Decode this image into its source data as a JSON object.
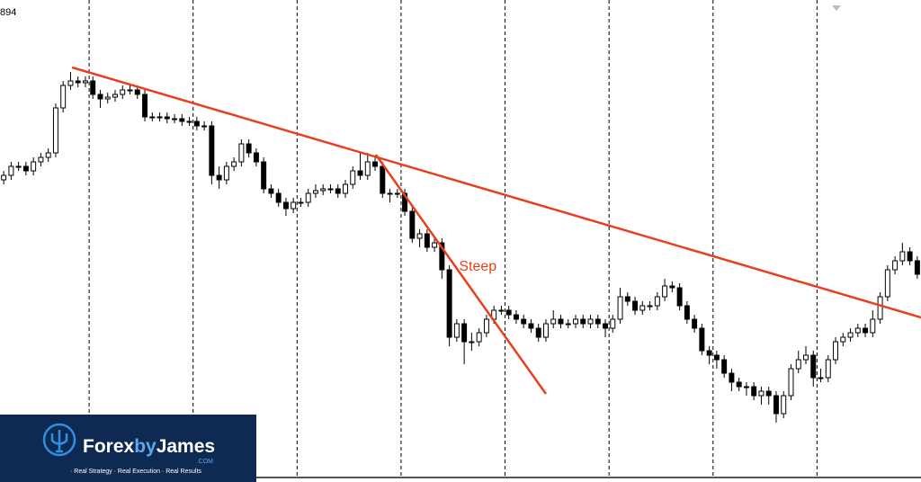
{
  "chart_data": {
    "type": "candlestick",
    "top_label": "894",
    "xlim": [
      0,
      124
    ],
    "ylim": [
      0,
      536
    ],
    "xticks": [
      12,
      26,
      40,
      54,
      68,
      82,
      96,
      110
    ],
    "grid": true,
    "up_color": "#ffffff",
    "down_color": "#000000",
    "edge_color": "#000000",
    "open": [
      336,
      341,
      351,
      351,
      346,
      356,
      361,
      366,
      416,
      441,
      446,
      444,
      446,
      431,
      426,
      428,
      431,
      436,
      436,
      431,
      406,
      406,
      406,
      404,
      404,
      401,
      401,
      396,
      396,
      341,
      336,
      351,
      356,
      376,
      366,
      356,
      326,
      321,
      311,
      304,
      311,
      311,
      321,
      324,
      326,
      326,
      321,
      331,
      346,
      341,
      356,
      351,
      321,
      321,
      321,
      301,
      271,
      276,
      261,
      266,
      236,
      161,
      176,
      156,
      156,
      166,
      181,
      191,
      191,
      186,
      181,
      176,
      171,
      161,
      176,
      181,
      176,
      176,
      181,
      176,
      181,
      176,
      171,
      181,
      206,
      201,
      191,
      196,
      196,
      206,
      218,
      216,
      196,
      181,
      171,
      146,
      141,
      136,
      121,
      111,
      106,
      106,
      96,
      101,
      96,
      76,
      96,
      126,
      136,
      141,
      116,
      116,
      136,
      156,
      161,
      166,
      171,
      166,
      181,
      206,
      236,
      246,
      256,
      246
    ],
    "high": [
      346,
      356,
      356,
      356,
      361,
      366,
      371,
      421,
      446,
      456,
      451,
      451,
      451,
      436,
      433,
      436,
      441,
      441,
      441,
      436,
      411,
      411,
      411,
      409,
      409,
      406,
      406,
      401,
      401,
      351,
      356,
      361,
      381,
      381,
      371,
      361,
      331,
      326,
      316,
      316,
      316,
      326,
      331,
      331,
      331,
      331,
      336,
      351,
      366,
      366,
      361,
      356,
      326,
      326,
      326,
      306,
      281,
      281,
      271,
      271,
      241,
      181,
      181,
      166,
      171,
      186,
      196,
      196,
      196,
      191,
      186,
      181,
      176,
      181,
      191,
      186,
      181,
      186,
      186,
      186,
      186,
      181,
      186,
      216,
      211,
      206,
      201,
      201,
      211,
      226,
      223,
      221,
      201,
      186,
      176,
      151,
      146,
      141,
      126,
      116,
      111,
      111,
      106,
      106,
      101,
      101,
      131,
      146,
      151,
      146,
      126,
      141,
      161,
      166,
      171,
      176,
      176,
      191,
      211,
      241,
      251,
      266,
      261,
      251
    ],
    "low": [
      331,
      336,
      346,
      341,
      341,
      351,
      356,
      361,
      411,
      436,
      439,
      439,
      426,
      416,
      421,
      423,
      426,
      431,
      426,
      401,
      401,
      401,
      399,
      399,
      396,
      396,
      391,
      391,
      331,
      326,
      331,
      346,
      351,
      361,
      351,
      321,
      316,
      306,
      296,
      299,
      306,
      306,
      316,
      319,
      321,
      316,
      316,
      326,
      336,
      336,
      346,
      316,
      311,
      316,
      296,
      266,
      261,
      256,
      256,
      226,
      151,
      156,
      131,
      146,
      151,
      161,
      176,
      186,
      181,
      176,
      171,
      166,
      156,
      156,
      171,
      171,
      171,
      171,
      171,
      171,
      171,
      161,
      166,
      176,
      196,
      186,
      186,
      191,
      191,
      201,
      211,
      191,
      176,
      166,
      141,
      131,
      126,
      116,
      101,
      101,
      96,
      91,
      86,
      86,
      66,
      71,
      91,
      121,
      131,
      106,
      111,
      111,
      131,
      151,
      156,
      161,
      161,
      161,
      176,
      201,
      231,
      241,
      241,
      226
    ],
    "close": [
      341,
      351,
      351,
      346,
      356,
      361,
      366,
      416,
      441,
      446,
      444,
      446,
      431,
      426,
      428,
      431,
      436,
      436,
      431,
      406,
      406,
      406,
      404,
      404,
      401,
      401,
      396,
      396,
      341,
      336,
      351,
      356,
      376,
      366,
      356,
      326,
      321,
      311,
      304,
      311,
      311,
      321,
      324,
      326,
      326,
      321,
      331,
      346,
      341,
      356,
      351,
      321,
      321,
      321,
      301,
      271,
      276,
      261,
      266,
      236,
      161,
      176,
      156,
      156,
      166,
      181,
      191,
      191,
      186,
      181,
      176,
      171,
      161,
      176,
      181,
      176,
      176,
      181,
      176,
      181,
      176,
      171,
      181,
      206,
      201,
      191,
      196,
      196,
      206,
      218,
      216,
      196,
      181,
      171,
      146,
      141,
      136,
      121,
      111,
      106,
      106,
      96,
      101,
      96,
      76,
      96,
      126,
      136,
      141,
      116,
      116,
      136,
      156,
      161,
      166,
      171,
      166,
      181,
      206,
      236,
      246,
      256,
      246,
      231
    ],
    "trendlines": [
      {
        "x": [
          9.7,
          124
        ],
        "y": [
          461,
          183
        ],
        "color": "#e8401f"
      },
      {
        "x": [
          50.6,
          73.5
        ],
        "y": [
          364,
          98
        ],
        "color": "#e8401f"
      }
    ],
    "annotations": [
      {
        "text": "Steep",
        "x": 61.8,
        "y": 239,
        "color": "#e8401f"
      }
    ]
  },
  "logo": {
    "brand": [
      "Forex",
      "by",
      "James"
    ],
    "domain": ".COM",
    "tagline": "· Real Strategy · Real Execution · Real Results"
  }
}
